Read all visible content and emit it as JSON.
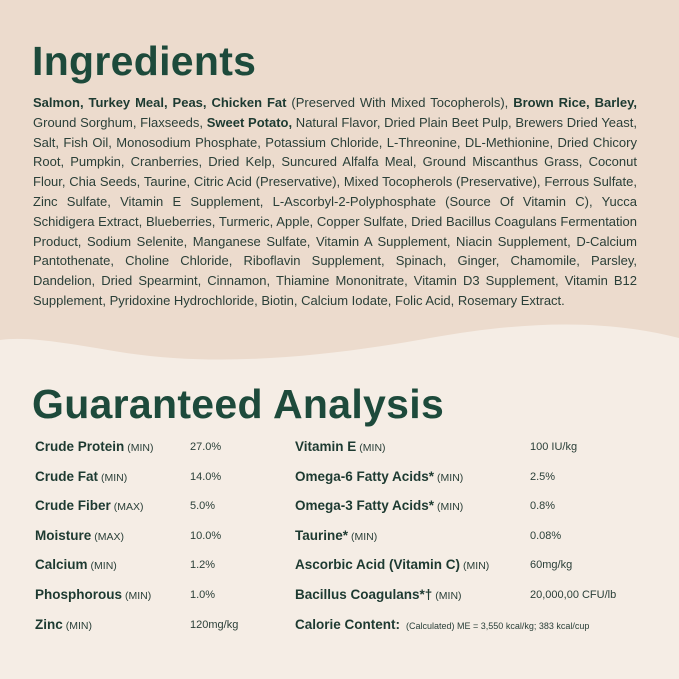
{
  "ingredients": {
    "title": "Ingredients",
    "segments": [
      {
        "text": "Salmon, Turkey Meal, Peas, Chicken Fat",
        "bold": true
      },
      {
        "text": " (Preserved With Mixed Tocopherols), ",
        "bold": false
      },
      {
        "text": "Brown Rice, Barley,",
        "bold": true
      },
      {
        "text": " Ground Sorghum, Flaxseeds, ",
        "bold": false
      },
      {
        "text": "Sweet Potato,",
        "bold": true
      },
      {
        "text": " Natural Flavor, Dried Plain Beet Pulp, Brewers Dried Yeast, Salt, Fish Oil, Monosodium Phosphate, Potassium Chloride, L-Threonine, DL-Methionine, Dried Chicory Root, Pumpkin, Cranberries, Dried Kelp, Suncured Alfalfa Meal, Ground Miscanthus Grass, Coconut Flour, Chia Seeds, Taurine, Citric Acid (Preservative), Mixed Tocopherols (Preservative), Ferrous Sulfate, Zinc Sulfate, Vitamin E Supplement, L-Ascorbyl-2-Polyphosphate (Source Of Vitamin C), Yucca Schidigera Extract, Blueberries, Turmeric, Apple, Copper Sulfate, Dried Bacillus Coagulans Fermentation Product, Sodium Selenite, Manganese Sulfate, Vitamin A Supplement, Niacin Supplement, D-Calcium Pantothenate, Choline Chloride, Riboflavin Supplement, Spinach, Ginger, Chamomile, Parsley, Dandelion, Dried Spearmint, Cinnamon, Thiamine Mononitrate, Vitamin D3 Supplement, Vitamin B12 Supplement, Pyridoxine Hydrochloride, Biotin, Calcium Iodate, Folic Acid, Rosemary Extract.",
        "bold": false
      }
    ]
  },
  "analysis": {
    "title": "Guaranteed Analysis",
    "left": [
      {
        "name": "Crude Protein",
        "qualifier": "(MIN)",
        "value": "27.0%"
      },
      {
        "name": "Crude Fat",
        "qualifier": "(MIN)",
        "value": "14.0%"
      },
      {
        "name": "Crude Fiber",
        "qualifier": "(MAX)",
        "value": "5.0%"
      },
      {
        "name": "Moisture",
        "qualifier": "(MAX)",
        "value": "10.0%"
      },
      {
        "name": "Calcium",
        "qualifier": "(MIN)",
        "value": "1.2%"
      },
      {
        "name": "Phosphorous",
        "qualifier": "(MIN)",
        "value": "1.0%"
      },
      {
        "name": "Zinc",
        "qualifier": "(MIN)",
        "value": "120mg/kg"
      }
    ],
    "right": [
      {
        "name": "Vitamin E",
        "qualifier": "(MIN)",
        "value": "100 IU/kg"
      },
      {
        "name": "Omega-6 Fatty Acids*",
        "qualifier": "(MIN)",
        "value": "2.5%"
      },
      {
        "name": "Omega-3 Fatty Acids*",
        "qualifier": "(MIN)",
        "value": "0.8%"
      },
      {
        "name": "Taurine*",
        "qualifier": "(MIN)",
        "value": "0.08%"
      },
      {
        "name": "Ascorbic Acid (Vitamin C)",
        "qualifier": "(MIN)",
        "value": "60mg/kg"
      },
      {
        "name": "Bacillus Coagulans*†",
        "qualifier": "(MIN)",
        "value": "20,000,00 CFU/lb"
      }
    ],
    "calorie": {
      "name": "Calorie Content:",
      "note": "(Calculated) ME = 3,550 kcal/kg; 383 kcal/cup"
    }
  }
}
